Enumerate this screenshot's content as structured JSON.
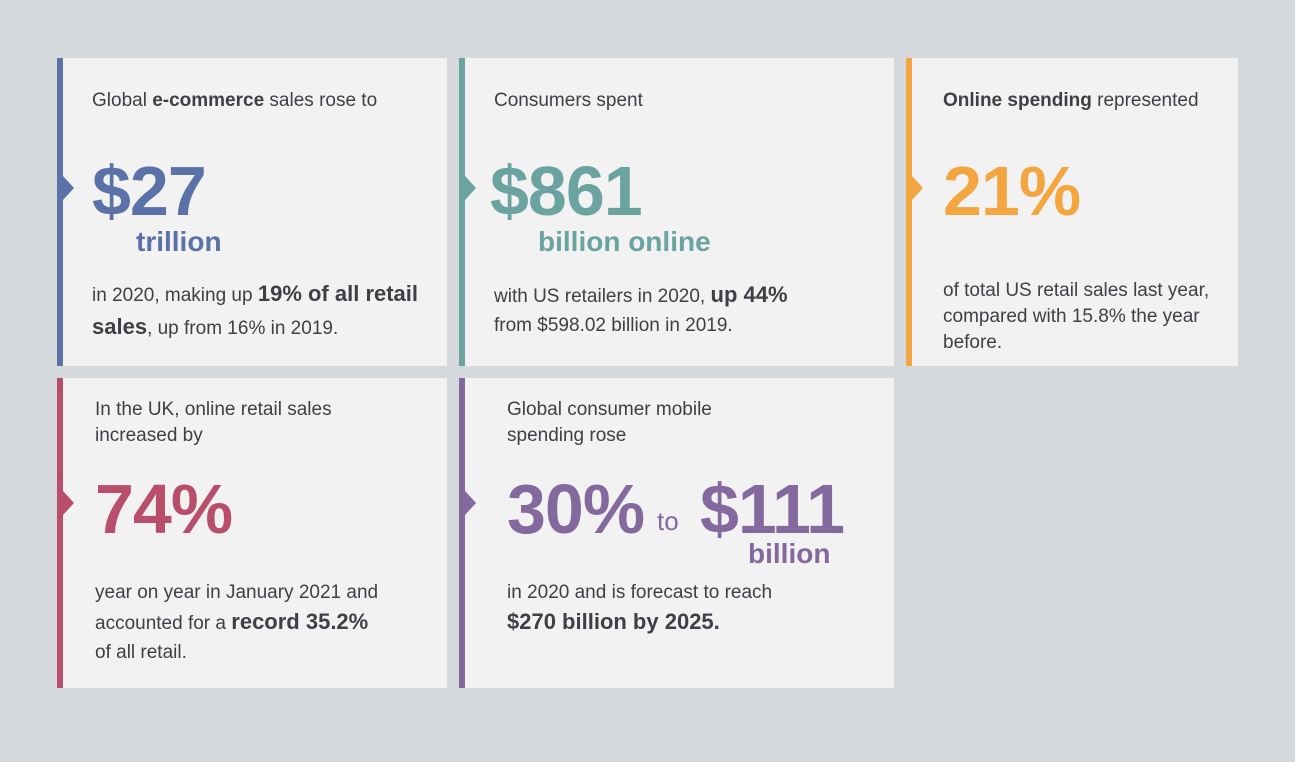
{
  "colors": {
    "blue": "#5b72a8",
    "teal": "#6aa39f",
    "orange": "#f3a640",
    "red": "#b94d6c",
    "purple": "#84699f"
  },
  "cards": [
    {
      "intro_pre": "Global ",
      "intro_bold": "e-commerce",
      "intro_post": " sales rose to",
      "value": "$27",
      "unit": "trillion",
      "body_pre": "in 2020, making up ",
      "body_bold": "19% of all retail sales",
      "body_post": ", up from 16% in 2019."
    },
    {
      "intro": "Consumers spent",
      "value": "$861",
      "unit": "billion online",
      "body_pre": "with US retailers in 2020, ",
      "body_bold": "up 44%",
      "body_post": "from $598.02 billion in 2019."
    },
    {
      "intro_bold": "Online spending",
      "intro_post": " represented",
      "value": "21%",
      "body": "of total US retail sales last year, compared with 15.8% the year before."
    },
    {
      "intro": "In the UK, online retail sales increased by",
      "value": "74%",
      "body_pre": "year on year in January 2021 and accounted for a ",
      "body_bold": "record 35.2%",
      "body_post": "of all retail."
    },
    {
      "intro": "Global consumer mobile spending rose",
      "value": "30%",
      "connector": "to",
      "value2": "$111",
      "unit": "billion",
      "body_pre": "in 2020 and is forecast to reach",
      "body_bold": "$270 billion by 2025."
    }
  ]
}
